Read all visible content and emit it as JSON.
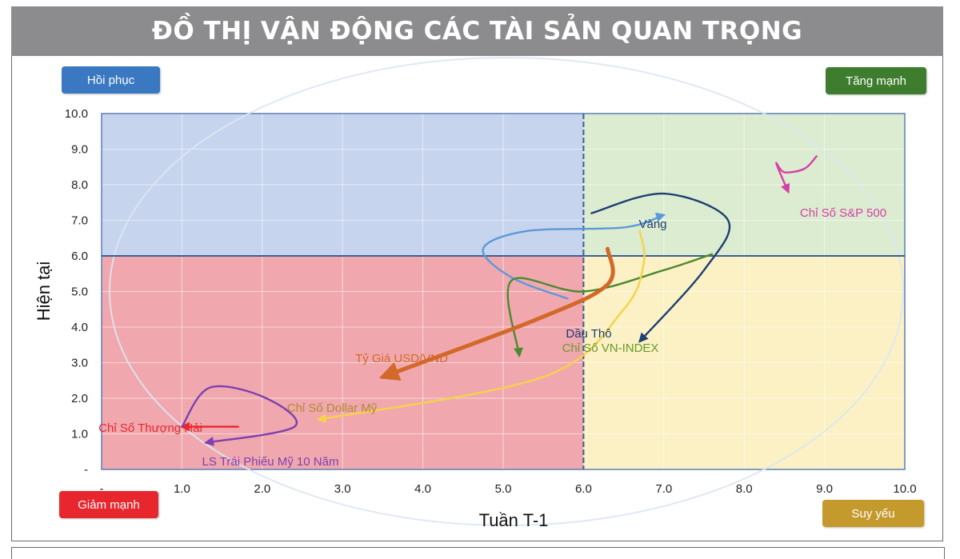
{
  "header": {
    "title": "ĐỒ THỊ VẬN ĐỘNG CÁC TÀI SẢN QUAN TRỌNG"
  },
  "quadrants": {
    "top_left": {
      "label": "Hồi phục",
      "color": "#3a78c2"
    },
    "top_right": {
      "label": "Tăng mạnh",
      "color": "#3f7d2e"
    },
    "bottom_left": {
      "label": "Giảm mạnh",
      "color": "#e8262e"
    },
    "bottom_right": {
      "label": "Suy yếu",
      "color": "#c49a2c"
    }
  },
  "chart_data": {
    "type": "line",
    "xlabel": "Tuần T-1",
    "ylabel": "Hiện tại",
    "xlim": [
      0,
      10
    ],
    "ylim": [
      0,
      10
    ],
    "x_ticks": [
      "-",
      "1.0",
      "2.0",
      "3.0",
      "4.0",
      "5.0",
      "6.0",
      "7.0",
      "8.0",
      "9.0",
      "10.0"
    ],
    "y_ticks": [
      "-",
      "1.0",
      "2.0",
      "3.0",
      "4.0",
      "5.0",
      "6.0",
      "7.0",
      "8.0",
      "9.0",
      "10.0"
    ],
    "center": [
      6.0,
      6.0
    ],
    "region_colors": {
      "top_left": "#c6d4ee",
      "top_right": "#dcecd0",
      "bottom_left": "#f0a8ae",
      "bottom_right": "#fbf1c4"
    },
    "series": [
      {
        "name": "Chỉ Số S&P 500",
        "color": "#d440a8",
        "points": [
          [
            8.9,
            8.8
          ],
          [
            8.75,
            8.45
          ],
          [
            8.5,
            8.35
          ],
          [
            8.4,
            8.6
          ],
          [
            8.55,
            7.8
          ]
        ]
      },
      {
        "name": "Vàng",
        "color": "#5b9ad8",
        "points": [
          [
            5.8,
            4.8
          ],
          [
            5.1,
            5.4
          ],
          [
            4.75,
            6.2
          ],
          [
            5.3,
            6.7
          ],
          [
            6.5,
            6.8
          ],
          [
            7.0,
            7.15
          ]
        ]
      },
      {
        "name": "Dầu Thô",
        "color": "#1d3f72",
        "points": [
          [
            6.1,
            7.2
          ],
          [
            7.0,
            7.75
          ],
          [
            7.8,
            7.0
          ],
          [
            7.5,
            5.6
          ],
          [
            6.7,
            3.6
          ]
        ]
      },
      {
        "name": "Chỉ Số VN-INDEX",
        "color": "#4c8a30",
        "points": [
          [
            7.6,
            6.05
          ],
          [
            7.0,
            5.6
          ],
          [
            6.0,
            5.0
          ],
          [
            5.1,
            5.3
          ],
          [
            5.2,
            3.2
          ]
        ]
      },
      {
        "name": "Tỷ Giá USD/VND",
        "color": "#d2682a",
        "points": [
          [
            6.3,
            6.2
          ],
          [
            6.3,
            5.2
          ],
          [
            5.4,
            4.2
          ],
          [
            3.5,
            2.6
          ]
        ]
      },
      {
        "name": "Chỉ Số Dollar Mỹ",
        "color": "#f5d24a",
        "points": [
          [
            6.7,
            6.7
          ],
          [
            6.75,
            5.8
          ],
          [
            6.5,
            4.5
          ],
          [
            5.5,
            2.6
          ],
          [
            2.7,
            1.4
          ]
        ]
      },
      {
        "name": "Chỉ Số Thượng Hải",
        "color": "#e8262e",
        "points": [
          [
            1.7,
            1.2
          ],
          [
            1.0,
            1.2
          ]
        ]
      },
      {
        "name": "LS Trái Phiếu Mỹ 10 Năm",
        "color": "#7f3fb0",
        "points": [
          [
            1.0,
            1.2
          ],
          [
            1.35,
            2.3
          ],
          [
            2.05,
            2.0
          ],
          [
            2.4,
            1.2
          ],
          [
            1.3,
            0.75
          ]
        ]
      }
    ]
  }
}
